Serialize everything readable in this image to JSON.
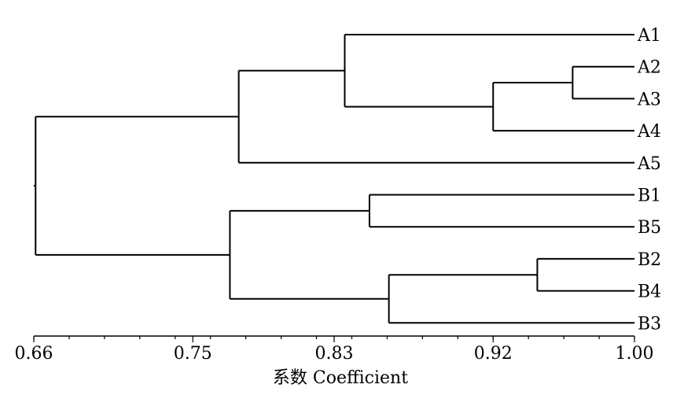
{
  "chart_data": {
    "type": "dendrogram",
    "xlabel": "系数 Coefficient",
    "xlim": [
      0.66,
      1.0
    ],
    "ticks": [
      "0.66",
      "0.75",
      "0.83",
      "0.92",
      "1.00"
    ],
    "leaves": [
      "A1",
      "A2",
      "A3",
      "A4",
      "A5",
      "B1",
      "B5",
      "B2",
      "B4",
      "B3"
    ],
    "merges": [
      {
        "id": "n1",
        "children": [
          "A2",
          "A3"
        ],
        "coefficient": 0.965
      },
      {
        "id": "n2",
        "children": [
          "n1",
          "A4"
        ],
        "coefficient": 0.92
      },
      {
        "id": "n3",
        "children": [
          "A1",
          "n2"
        ],
        "coefficient": 0.836
      },
      {
        "id": "n4",
        "children": [
          "n3",
          "A5"
        ],
        "coefficient": 0.776
      },
      {
        "id": "n5",
        "children": [
          "B1",
          "B5"
        ],
        "coefficient": 0.85
      },
      {
        "id": "n6",
        "children": [
          "B2",
          "B4"
        ],
        "coefficient": 0.945
      },
      {
        "id": "n7",
        "children": [
          "n6",
          "B3"
        ],
        "coefficient": 0.861
      },
      {
        "id": "n8",
        "children": [
          "n5",
          "n7"
        ],
        "coefficient": 0.771
      },
      {
        "id": "n9",
        "children": [
          "n4",
          "n8"
        ],
        "coefficient": 0.661
      }
    ]
  }
}
